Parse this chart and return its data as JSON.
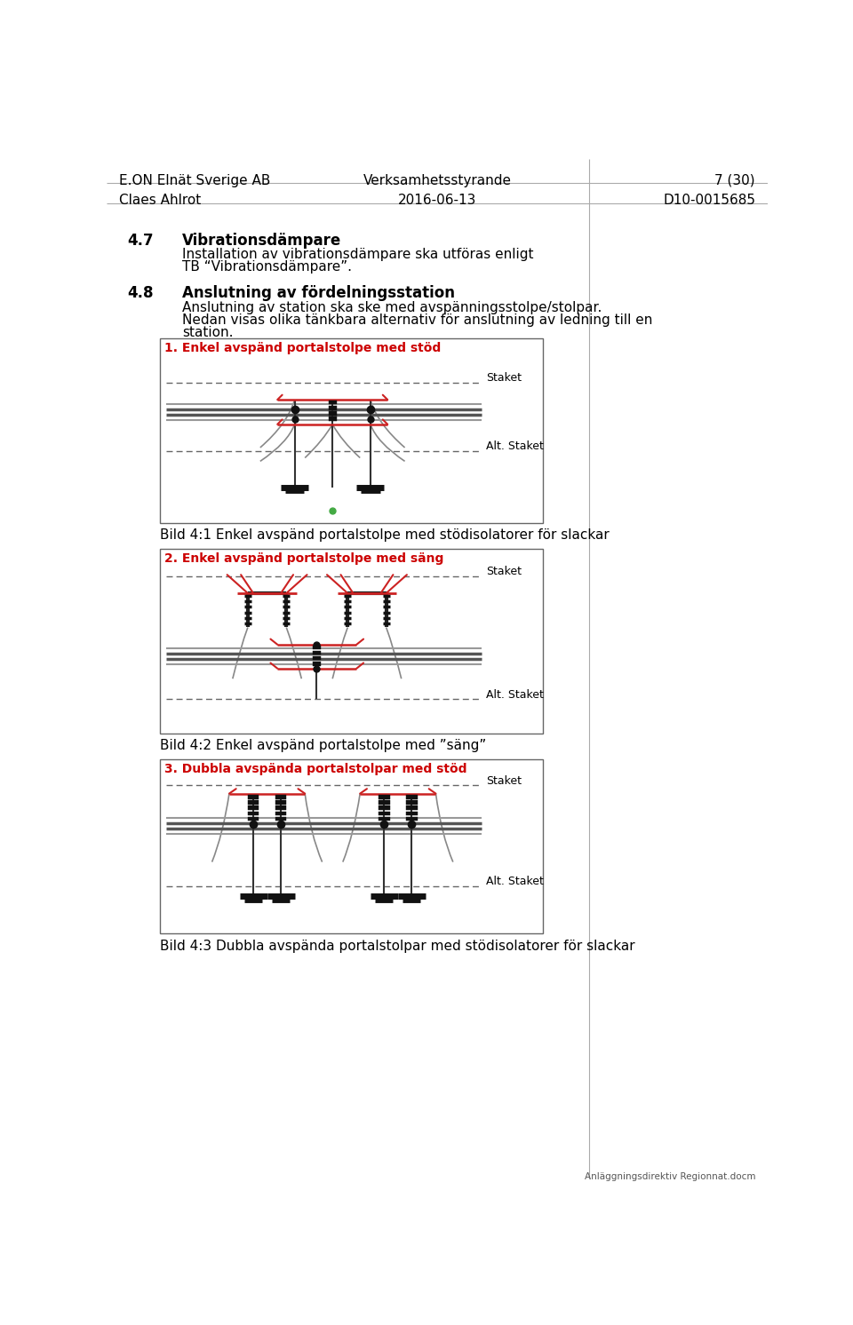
{
  "header_left1": "E.ON Elnät Sverige AB",
  "header_center1": "Verksamhetsstyrande",
  "header_right1": "7 (30)",
  "header_left2": "Claes Ahlrot",
  "header_center2": "2016-06-13",
  "header_right2": "D10-0015685",
  "section_47_num": "4.7",
  "section_47_title": "Vibrationsdämpare",
  "section_47_body1": "Installation av vibrationsdämpare ska utföras enligt",
  "section_47_body2": "TB “Vibrationsdämpare”.",
  "section_48_num": "4.8",
  "section_48_title": "Anslutning av fördelningsstation",
  "section_48_body1": "Anslutning av station ska ske med avspänningsstolpe/stolpar.",
  "section_48_body2": "Nedan visas olika tänkbara alternativ för anslutning av ledning till en",
  "section_48_body3": "station.",
  "box1_title": "1. Enkel avspänd portalstolpe med stöd",
  "box1_caption": "Bild 4:1 Enkel avspänd portalstolpe med stödisolatorer för slackar",
  "box2_title": "2. Enkel avspänd portalstolpe med säng",
  "box2_caption": "Bild 4:2 Enkel avspänd portalstolpe med ”säng”",
  "box3_title": "3. Dubbla avspända portalstolpar med stöd",
  "box3_caption": "Bild 4:3 Dubbla avspända portalstolpar med stödisolatorer för slackar",
  "footer_text": "Anläggningsdirektiv Regionnat.docm",
  "bg_color": "#ffffff",
  "text_color": "#000000",
  "red_color": "#cc0000",
  "box_border_color": "#666666",
  "green_dot_color": "#44aa44"
}
